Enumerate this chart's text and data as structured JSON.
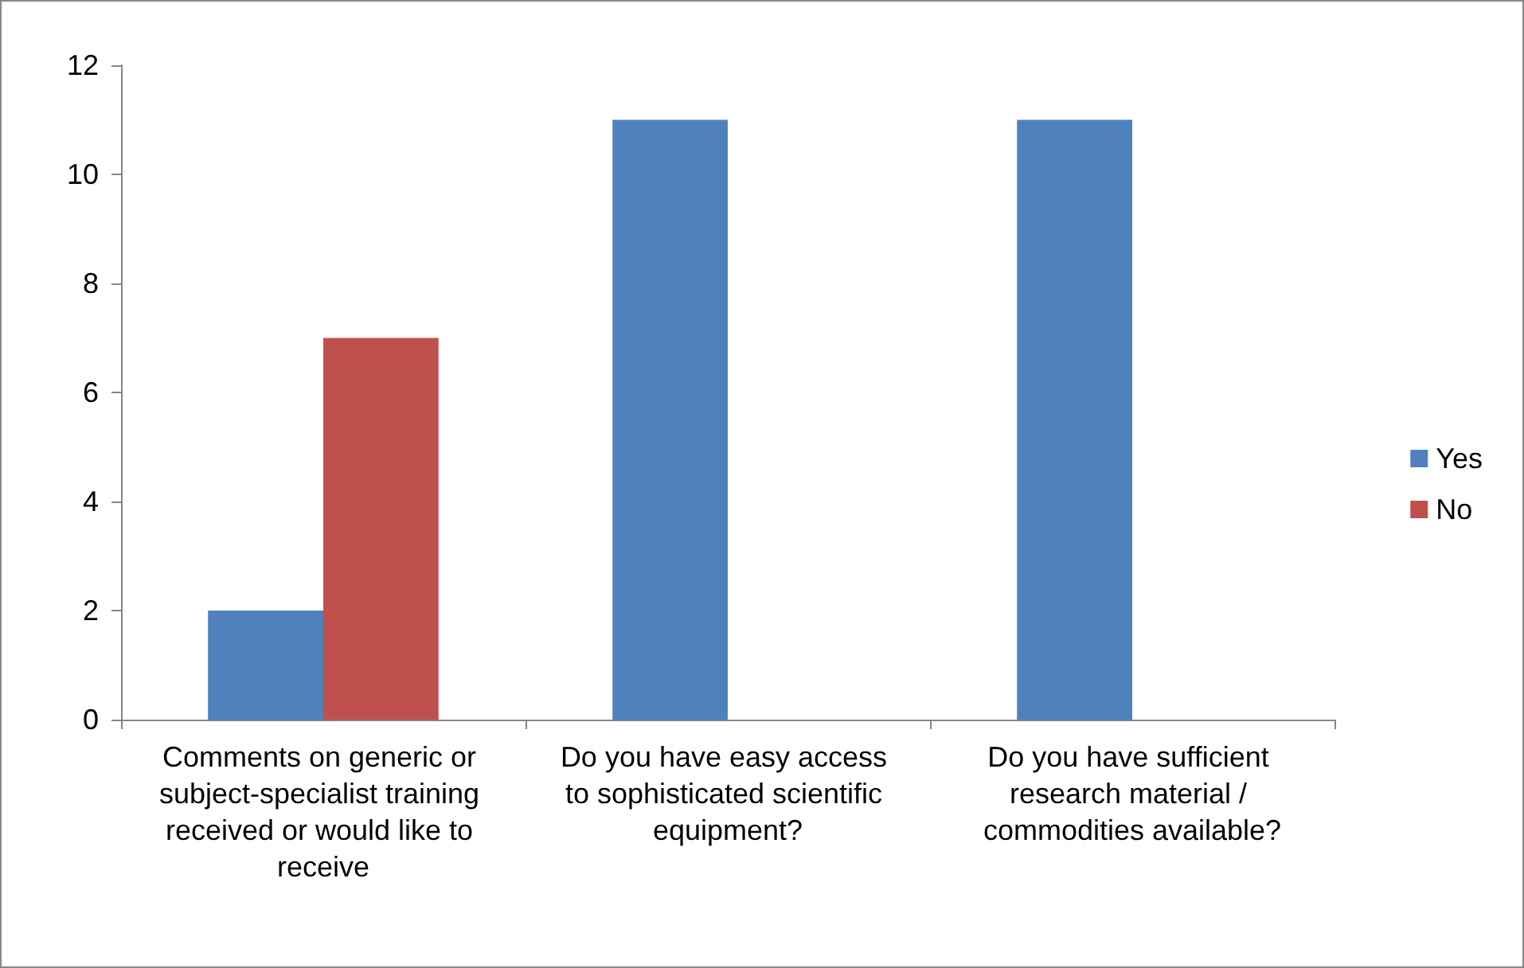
{
  "chart_data": {
    "type": "bar",
    "categories": [
      "Comments on generic or subject-specialist training received or would like to receive",
      "Do you have easy access to sophisticated scientific equipment?",
      "Do you have sufficient research material / commodities available?"
    ],
    "series": [
      {
        "name": "Yes",
        "color": "#4f81bd",
        "values": [
          2,
          11,
          11
        ]
      },
      {
        "name": "No",
        "color": "#c0504d",
        "values": [
          7,
          0,
          0
        ]
      }
    ],
    "ylim": [
      0,
      12
    ],
    "yticks": [
      0,
      2,
      4,
      6,
      8,
      10,
      12
    ],
    "grid": false,
    "legend": "right"
  }
}
